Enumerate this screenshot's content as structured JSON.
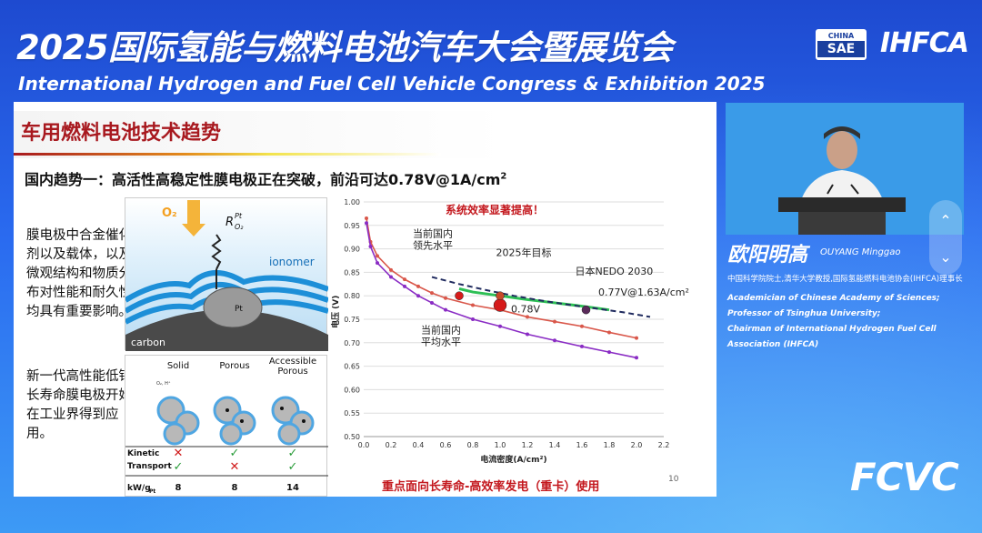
{
  "event": {
    "title_cn": "2025国际氢能与燃料电池汽车大会暨展览会",
    "title_en": "International Hydrogen and Fuel Cell Vehicle Congress & Exhibition 2025",
    "logo_chinasae_top": "CHINA",
    "logo_chinasae_bottom": "SAE",
    "logo_ihfca": "IHFCA",
    "logo_fcvc": "FCVC"
  },
  "slide": {
    "title": "车用燃料电池技术趋势",
    "subtitle_main": "国内趋势一：高活性高稳定性膜电极正在突破，前沿可达0.78V@1A/cm",
    "subtitle_sup": "2",
    "para1": "膜电极中合金催化剂以及载体，以及微观结构和物质分布对性能和耐久性均具有重要影响。",
    "para2": "新一代高性能低铂长寿命膜电极开始在工业界得到应用。",
    "page_number": "10",
    "bottom_note": "重点面向长寿命-高效率发电（重卡）使用",
    "diagram1": {
      "o2_label": "O₂",
      "r_label": "R",
      "r_sup": "Pt",
      "r_sub": "O₂",
      "ionomer_label": "ionomer",
      "pt_label": "Pt",
      "carbon_label": "carbon"
    },
    "diagram2": {
      "col_solid": "Solid",
      "col_porous": "Porous",
      "col_accessible_1": "Accessible",
      "col_accessible_2": "Porous",
      "gas_label": "O₂, H⁺",
      "row_kinetic": "Kinetic",
      "row_transport": "Transport",
      "row_kw": "kW/g",
      "row_kw_sub": "Pt",
      "kinetic": [
        "✕",
        "✓",
        "✓"
      ],
      "transport": [
        "✓",
        "✕",
        "✓"
      ],
      "kw_values": [
        "8",
        "8",
        "14"
      ]
    }
  },
  "chart_data": {
    "type": "line",
    "xlabel": "电流密度(A/cm²)",
    "ylabel": "电压 (V)",
    "xlim": [
      0.0,
      2.2
    ],
    "ylim": [
      0.5,
      1.0
    ],
    "x_ticks": [
      "0.0",
      "0.2",
      "0.4",
      "0.6",
      "0.8",
      "1.0",
      "1.2",
      "1.4",
      "1.6",
      "1.8",
      "2.0",
      "2.2"
    ],
    "y_ticks": [
      "0.50",
      "0.55",
      "0.60",
      "0.65",
      "0.70",
      "0.75",
      "0.80",
      "0.85",
      "0.90",
      "0.95",
      "1.00"
    ],
    "grid": "horizontal",
    "annotations": {
      "headline": "系统效率显著提高！",
      "leading": "当前国内\n领先水平",
      "target2025": "2025年目标",
      "nedo": "日本NEDO 2030",
      "nedo_value": "0.77V@1.63A/cm²",
      "point_value": "0.78V",
      "average": "当前国内\n平均水平"
    },
    "series": [
      {
        "color": "#d9574a",
        "style": "solid-markers",
        "x": [
          0.02,
          0.05,
          0.1,
          0.2,
          0.3,
          0.4,
          0.5,
          0.6,
          0.8,
          1.0,
          1.2,
          1.4,
          1.6,
          1.8,
          2.0
        ],
        "y": [
          0.965,
          0.915,
          0.885,
          0.855,
          0.835,
          0.82,
          0.806,
          0.795,
          0.78,
          0.77,
          0.755,
          0.745,
          0.735,
          0.722,
          0.71
        ]
      },
      {
        "color": "#8a2cc4",
        "style": "solid-markers",
        "x": [
          0.02,
          0.05,
          0.1,
          0.2,
          0.3,
          0.4,
          0.5,
          0.6,
          0.8,
          1.0,
          1.2,
          1.4,
          1.6,
          1.8,
          2.0
        ],
        "y": [
          0.955,
          0.905,
          0.87,
          0.84,
          0.82,
          0.8,
          0.785,
          0.77,
          0.75,
          0.735,
          0.718,
          0.705,
          0.692,
          0.68,
          0.668
        ]
      },
      {
        "color": "#2dbf55",
        "style": "solid",
        "x": [
          0.7,
          0.8,
          1.0,
          1.2,
          1.4,
          1.6,
          1.8
        ],
        "y": [
          0.815,
          0.808,
          0.8,
          0.792,
          0.785,
          0.778,
          0.77
        ]
      },
      {
        "color": "#1f2a5e",
        "style": "dashed",
        "x": [
          0.5,
          0.7,
          0.9,
          1.1,
          1.3,
          1.5,
          1.7,
          1.9,
          2.1
        ],
        "y": [
          0.84,
          0.825,
          0.812,
          0.8,
          0.79,
          0.781,
          0.773,
          0.765,
          0.755
        ]
      }
    ],
    "markers": [
      {
        "x": 0.7,
        "y": 0.8,
        "color": "#d61a1a",
        "size": "small"
      },
      {
        "x": 1.0,
        "y": 0.78,
        "color": "#d61a1a",
        "size": "large"
      },
      {
        "x": 1.0,
        "y": 0.8,
        "color": "#c84a2a",
        "size": "small"
      },
      {
        "x": 1.63,
        "y": 0.77,
        "color": "#5a2a5a",
        "size": "small"
      }
    ]
  },
  "speaker": {
    "name_cn": "欧阳明高",
    "name_en": "OUYANG Minggao",
    "role_cn": "中国科学院院士,清华大学教授,国际氢能燃料电池协会(IHFCA)理事长",
    "role_en_1": "Academician of Chinese Academy of Sciences;",
    "role_en_2": "Professor of Tsinghua University;",
    "role_en_3": "Chairman of International Hydrogen Fuel Cell",
    "role_en_4": "Association (IHFCA)"
  },
  "controls": {
    "up_icon": "chevron-up-icon",
    "down_icon": "chevron-down-icon"
  }
}
